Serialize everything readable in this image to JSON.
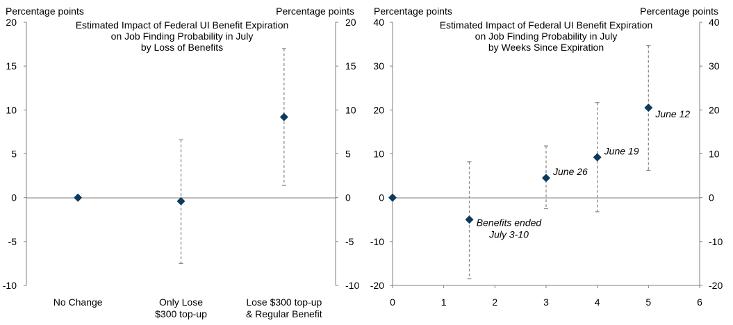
{
  "colors": {
    "marker": "#0d3a5c",
    "axis": "#7f7f7f",
    "whisker": "#8c8c8c"
  },
  "chart_data": [
    {
      "type": "scatter",
      "title_lines": [
        "Estimated Impact of Federal UI Benefit Expiration",
        "on Job Finding Probability in July",
        "by Loss of Benefits"
      ],
      "left_unit": "Percentage points",
      "right_unit": "Percentage points",
      "ylim": [
        -10,
        20
      ],
      "yticks": [
        20,
        15,
        10,
        5,
        0,
        -5,
        -10
      ],
      "categories": [
        {
          "lines": [
            "No Change"
          ]
        },
        {
          "lines": [
            "Only Lose",
            "$300 top-up"
          ]
        },
        {
          "lines": [
            "Lose $300 top-up",
            "& Regular Benefit"
          ]
        }
      ],
      "points": [
        {
          "category": 0,
          "y": 0.0,
          "ci": null
        },
        {
          "category": 1,
          "y": -0.4,
          "ci": [
            -7.5,
            6.6
          ]
        },
        {
          "category": 2,
          "y": 9.2,
          "ci": [
            1.4,
            17.0
          ]
        }
      ]
    },
    {
      "type": "scatter",
      "title_lines": [
        "Estimated Impact of Federal UI Benefit Expiration",
        "on Job Finding Probability in July",
        "by Weeks Since Expiration"
      ],
      "left_unit": "Percentage points",
      "right_unit": "Percentage points",
      "xlim": [
        0,
        6
      ],
      "xticks": [
        0,
        1,
        2,
        3,
        4,
        5,
        6
      ],
      "ylim": [
        -20,
        40
      ],
      "yticks": [
        40,
        30,
        20,
        10,
        0,
        -10,
        -20
      ],
      "points": [
        {
          "x": 0,
          "y": 0.0,
          "ci": null,
          "label": []
        },
        {
          "x": 1.5,
          "y": -5.0,
          "ci": [
            -18.5,
            8.2
          ],
          "label": [
            "Benefits ended",
            "July 3-10"
          ]
        },
        {
          "x": 3,
          "y": 4.5,
          "ci": [
            -2.5,
            11.8
          ],
          "label": [
            "June 26"
          ]
        },
        {
          "x": 4,
          "y": 9.2,
          "ci": [
            -3.2,
            21.7
          ],
          "label": [
            "June 19"
          ]
        },
        {
          "x": 5,
          "y": 20.5,
          "ci": [
            6.2,
            34.7
          ],
          "label": [
            "June 12"
          ]
        }
      ]
    }
  ]
}
